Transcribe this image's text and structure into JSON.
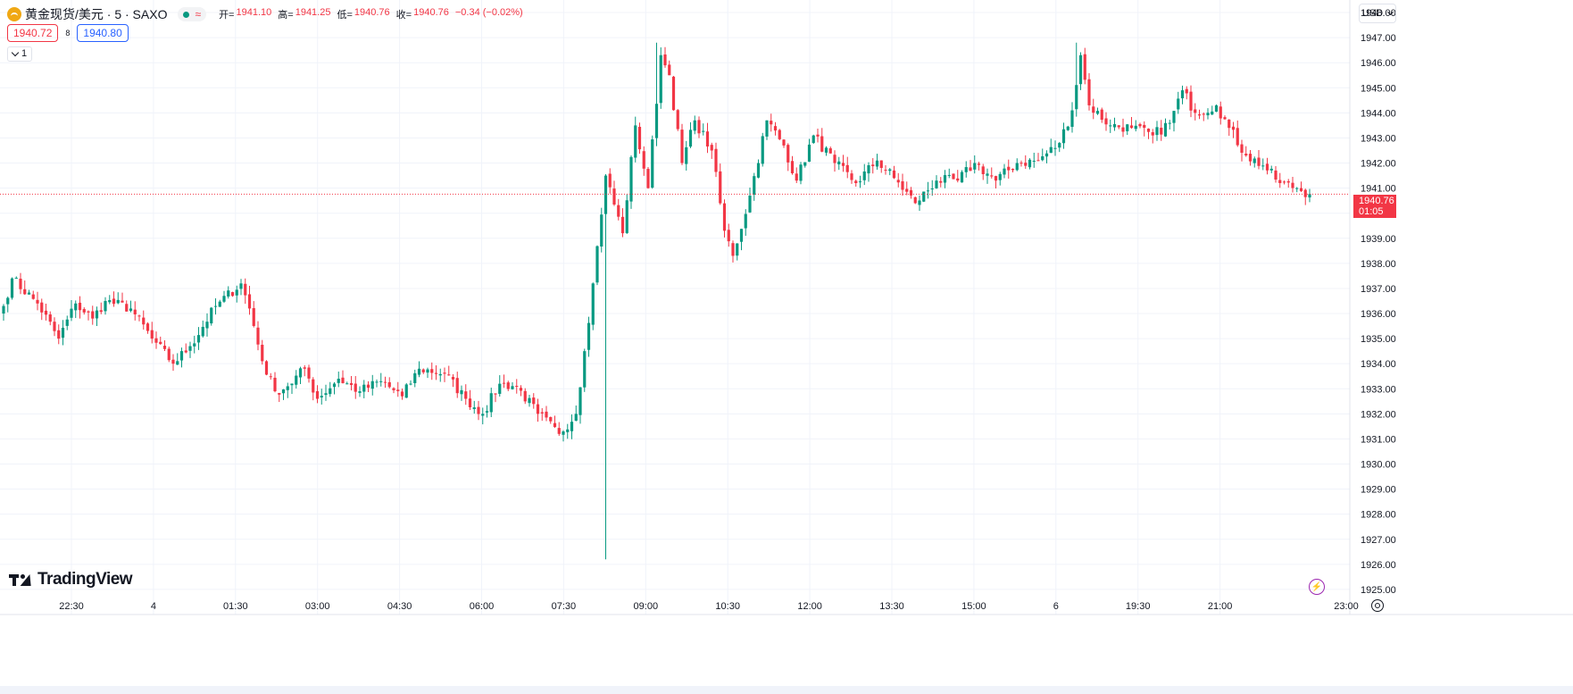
{
  "header": {
    "title": "黄金现货/美元 · 5 · SAXO",
    "status_wave": "≈",
    "ohlc": [
      {
        "key": "开=",
        "value": "1941.10"
      },
      {
        "key": "高=",
        "value": "1941.25"
      },
      {
        "key": "低=",
        "value": "1940.76"
      },
      {
        "key": "收=",
        "value": "1940.76"
      },
      {
        "key": "",
        "value": "−0.34 (−0.02%)"
      }
    ],
    "bid": "1940.72",
    "spread": "8",
    "ask": "1940.80",
    "collapse_label": "1",
    "currency": "USD"
  },
  "price_label": {
    "price": "1940.76",
    "countdown": "01:05"
  },
  "branding": {
    "logo_text": "TradingView"
  },
  "colors": {
    "up": "#089981",
    "down": "#f23645",
    "grid": "#f0f3fa",
    "bid": "#f23645",
    "ask": "#2962ff"
  },
  "icons": [
    "tv-logo-icon",
    "lightning-icon",
    "gear-icon",
    "chevron-down-icon"
  ],
  "chart_data": {
    "type": "candlestick",
    "interval": "5",
    "currency": "USD",
    "y_ticks": [
      1948,
      1947,
      1946,
      1945,
      1944,
      1943,
      1942,
      1941,
      1940,
      1939,
      1938,
      1937,
      1936,
      1935,
      1934,
      1933,
      1932,
      1931,
      1930,
      1929,
      1928,
      1927,
      1926,
      1925
    ],
    "ylim": [
      1924.0,
      1948.5
    ],
    "x_ticks": [
      "22:30",
      "4",
      "01:30",
      "03:00",
      "04:30",
      "06:00",
      "07:30",
      "09:00",
      "10:30",
      "12:00",
      "13:30",
      "15:00",
      "6",
      "19:30",
      "21:00",
      "23:00"
    ],
    "last_price": 1940.76,
    "anchors": [
      {
        "c": 0,
        "p": 1936.3
      },
      {
        "c": 2,
        "p": 1937.4
      },
      {
        "c": 8,
        "p": 1936.4
      },
      {
        "c": 13,
        "p": 1935.0
      },
      {
        "c": 17,
        "p": 1936.4
      },
      {
        "c": 21,
        "p": 1935.8
      },
      {
        "c": 24,
        "p": 1936.5
      },
      {
        "c": 30,
        "p": 1936.2
      },
      {
        "c": 35,
        "p": 1935.0
      },
      {
        "c": 40,
        "p": 1934.0
      },
      {
        "c": 44,
        "p": 1934.7
      },
      {
        "c": 50,
        "p": 1936.3
      },
      {
        "c": 56,
        "p": 1937.2
      },
      {
        "c": 58,
        "p": 1936.2
      },
      {
        "c": 61,
        "p": 1934.1
      },
      {
        "c": 64,
        "p": 1932.9
      },
      {
        "c": 67,
        "p": 1933.1
      },
      {
        "c": 71,
        "p": 1933.8
      },
      {
        "c": 74,
        "p": 1932.6
      },
      {
        "c": 79,
        "p": 1933.4
      },
      {
        "c": 84,
        "p": 1932.9
      },
      {
        "c": 89,
        "p": 1933.3
      },
      {
        "c": 94,
        "p": 1932.7
      },
      {
        "c": 98,
        "p": 1933.8
      },
      {
        "c": 104,
        "p": 1933.6
      },
      {
        "c": 109,
        "p": 1932.6
      },
      {
        "c": 113,
        "p": 1932.0
      },
      {
        "c": 117,
        "p": 1933.2
      },
      {
        "c": 121,
        "p": 1933.1
      },
      {
        "c": 126,
        "p": 1932.0
      },
      {
        "c": 131,
        "p": 1931.2
      },
      {
        "c": 135,
        "p": 1932.0
      },
      {
        "c": 137,
        "p": 1934.5
      },
      {
        "c": 139,
        "p": 1937.2
      },
      {
        "c": 142,
        "p": 1941.5
      },
      {
        "c": 146,
        "p": 1939.2
      },
      {
        "c": 149,
        "p": 1943.5
      },
      {
        "c": 152,
        "p": 1941.0
      },
      {
        "c": 155,
        "p": 1946.3
      },
      {
        "c": 157,
        "p": 1945.5
      },
      {
        "c": 160,
        "p": 1942.0
      },
      {
        "c": 163,
        "p": 1943.7
      },
      {
        "c": 167,
        "p": 1942.5
      },
      {
        "c": 170,
        "p": 1939.3
      },
      {
        "c": 172,
        "p": 1938.3
      },
      {
        "c": 176,
        "p": 1940.7
      },
      {
        "c": 180,
        "p": 1943.7
      },
      {
        "c": 184,
        "p": 1942.7
      },
      {
        "c": 187,
        "p": 1941.3
      },
      {
        "c": 191,
        "p": 1943.1
      },
      {
        "c": 196,
        "p": 1942.0
      },
      {
        "c": 201,
        "p": 1941.2
      },
      {
        "c": 206,
        "p": 1942.1
      },
      {
        "c": 210,
        "p": 1941.4
      },
      {
        "c": 215,
        "p": 1940.4
      },
      {
        "c": 220,
        "p": 1941.3
      },
      {
        "c": 225,
        "p": 1941.3
      },
      {
        "c": 229,
        "p": 1942.0
      },
      {
        "c": 234,
        "p": 1941.3
      },
      {
        "c": 239,
        "p": 1942.0
      },
      {
        "c": 244,
        "p": 1942.1
      },
      {
        "c": 249,
        "p": 1942.8
      },
      {
        "c": 252,
        "p": 1944.1
      },
      {
        "c": 254,
        "p": 1946.3
      },
      {
        "c": 256,
        "p": 1944.3
      },
      {
        "c": 261,
        "p": 1943.5
      },
      {
        "c": 266,
        "p": 1943.4
      },
      {
        "c": 271,
        "p": 1943.1
      },
      {
        "c": 275,
        "p": 1943.6
      },
      {
        "c": 278,
        "p": 1944.9
      },
      {
        "c": 281,
        "p": 1944.0
      },
      {
        "c": 286,
        "p": 1944.3
      },
      {
        "c": 289,
        "p": 1943.4
      },
      {
        "c": 293,
        "p": 1942.3
      },
      {
        "c": 297,
        "p": 1941.9
      },
      {
        "c": 301,
        "p": 1941.2
      },
      {
        "c": 305,
        "p": 1941.0
      },
      {
        "c": 308,
        "p": 1940.76
      }
    ]
  }
}
